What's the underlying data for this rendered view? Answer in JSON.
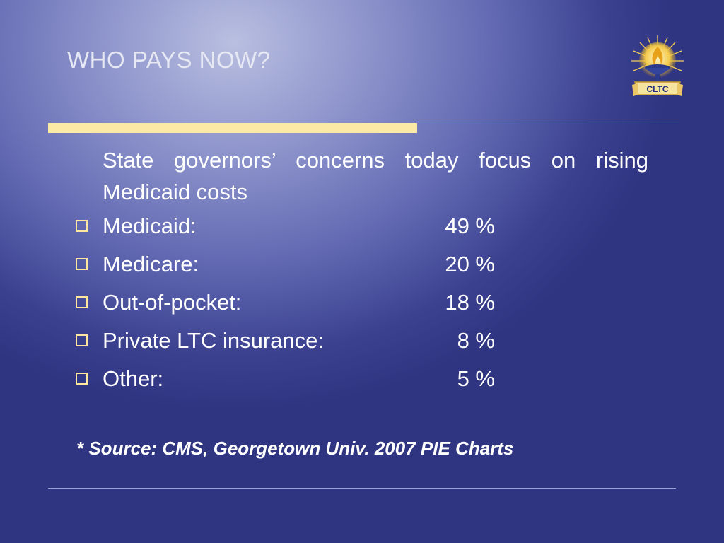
{
  "slide": {
    "title": "WHO PAYS NOW?",
    "logo_text": "CLTC",
    "intro": "State governors’ concerns today focus on rising Medicaid costs",
    "items": [
      {
        "label": "Medicaid:",
        "value": "49 %"
      },
      {
        "label": "Medicare:",
        "value": "20 %"
      },
      {
        "label": "Out-of-pocket:",
        "value": "18 %"
      },
      {
        "label": "Private LTC insurance:",
        "value": "8 %"
      },
      {
        "label": "Other:",
        "value": "5 %"
      }
    ],
    "source": "* Source:  CMS, Georgetown Univ. 2007  PIE Charts"
  },
  "colors": {
    "accent_bar": "#fde9a6",
    "bullet": "#ffe6a0",
    "background_dark": "#2f3581",
    "background_light": "#b9bfe0"
  }
}
